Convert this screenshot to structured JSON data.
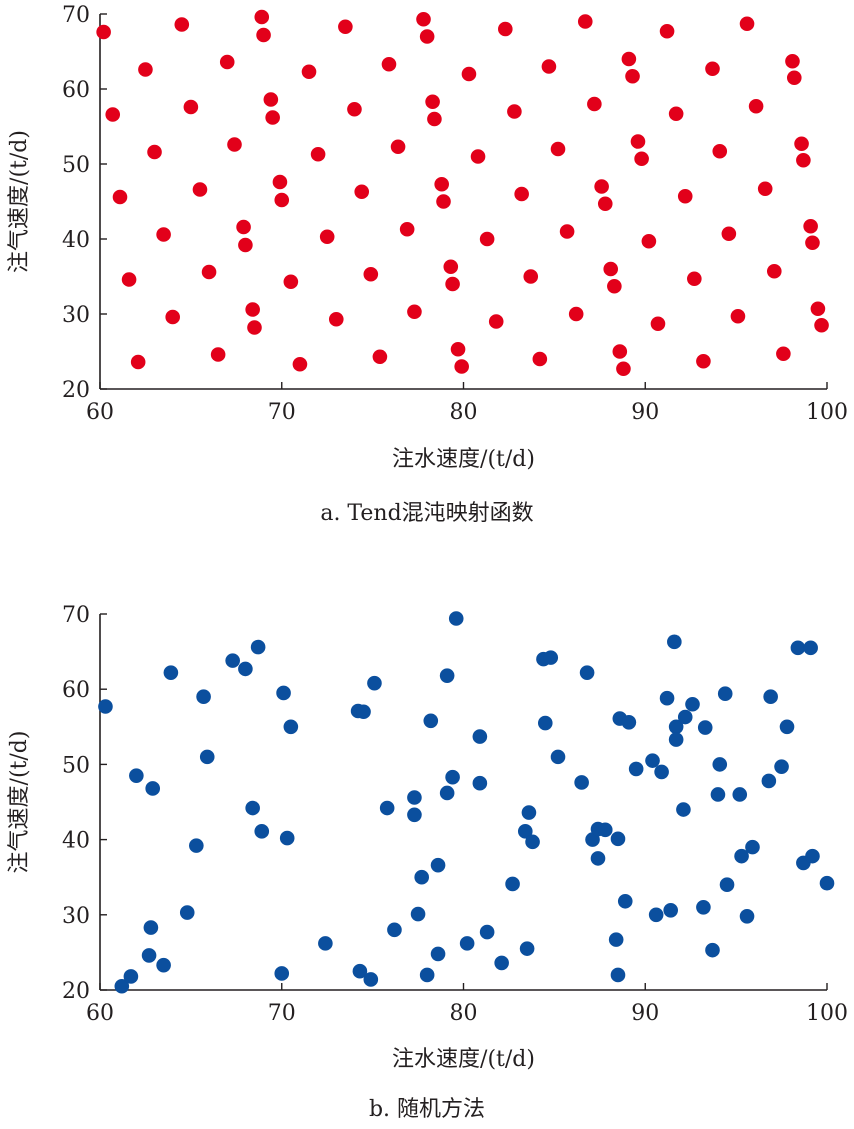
{
  "colors": {
    "series_a": "#e2001a",
    "series_b": "#0b4f9e",
    "axis": "#231f20"
  },
  "chart_data": [
    {
      "type": "scatter",
      "caption": "a. Tend混沌映射函数",
      "xlabel": "注水速度/(t/d)",
      "ylabel": "注气速度/(t/d)",
      "xlim": [
        60,
        100
      ],
      "ylim": [
        20,
        70
      ],
      "xticks": [
        "60",
        "70",
        "80",
        "90",
        "100"
      ],
      "yticks": [
        "20",
        "30",
        "40",
        "50",
        "60",
        "70"
      ],
      "grid": false,
      "legend": "none",
      "points": [
        [
          60.2,
          67.6
        ],
        [
          60.7,
          56.6
        ],
        [
          61.1,
          45.6
        ],
        [
          61.6,
          34.6
        ],
        [
          62.1,
          23.6
        ],
        [
          62.5,
          62.6
        ],
        [
          63.0,
          51.6
        ],
        [
          63.5,
          40.6
        ],
        [
          64.0,
          29.6
        ],
        [
          64.5,
          68.6
        ],
        [
          65.0,
          57.6
        ],
        [
          65.5,
          46.6
        ],
        [
          66.0,
          35.6
        ],
        [
          66.5,
          24.6
        ],
        [
          67.0,
          63.6
        ],
        [
          67.4,
          52.6
        ],
        [
          67.9,
          41.6
        ],
        [
          68.4,
          30.6
        ],
        [
          68.9,
          69.6
        ],
        [
          69.4,
          58.6
        ],
        [
          69.9,
          47.6
        ],
        [
          70.5,
          34.3
        ],
        [
          71.0,
          23.3
        ],
        [
          71.5,
          62.3
        ],
        [
          72.0,
          51.3
        ],
        [
          72.5,
          40.3
        ],
        [
          73.0,
          29.3
        ],
        [
          73.5,
          68.3
        ],
        [
          74.0,
          57.3
        ],
        [
          74.4,
          46.3
        ],
        [
          74.9,
          35.3
        ],
        [
          75.4,
          24.3
        ],
        [
          75.9,
          63.3
        ],
        [
          76.4,
          52.3
        ],
        [
          76.9,
          41.3
        ],
        [
          77.3,
          30.3
        ],
        [
          77.8,
          69.3
        ],
        [
          78.3,
          58.3
        ],
        [
          78.8,
          47.3
        ],
        [
          79.3,
          36.3
        ],
        [
          79.7,
          25.3
        ],
        [
          80.3,
          62.0
        ],
        [
          80.8,
          51.0
        ],
        [
          81.3,
          40.0
        ],
        [
          81.8,
          29.0
        ],
        [
          82.3,
          68.0
        ],
        [
          82.8,
          57.0
        ],
        [
          83.2,
          46.0
        ],
        [
          83.7,
          35.0
        ],
        [
          84.2,
          24.0
        ],
        [
          84.7,
          63.0
        ],
        [
          85.2,
          52.0
        ],
        [
          85.7,
          41.0
        ],
        [
          86.2,
          30.0
        ],
        [
          86.7,
          69.0
        ],
        [
          87.2,
          58.0
        ],
        [
          87.6,
          47.0
        ],
        [
          88.1,
          36.0
        ],
        [
          88.6,
          25.0
        ],
        [
          89.1,
          64.0
        ],
        [
          89.6,
          53.0
        ],
        [
          90.2,
          39.7
        ],
        [
          90.7,
          28.7
        ],
        [
          91.2,
          67.7
        ],
        [
          91.7,
          56.7
        ],
        [
          92.2,
          45.7
        ],
        [
          92.7,
          34.7
        ],
        [
          93.2,
          23.7
        ],
        [
          93.7,
          62.7
        ],
        [
          94.1,
          51.7
        ],
        [
          94.6,
          40.7
        ],
        [
          95.1,
          29.7
        ],
        [
          95.6,
          68.7
        ],
        [
          96.1,
          57.7
        ],
        [
          96.6,
          46.7
        ],
        [
          97.1,
          35.7
        ],
        [
          97.6,
          24.7
        ],
        [
          98.1,
          63.7
        ],
        [
          98.6,
          52.7
        ],
        [
          99.1,
          41.7
        ],
        [
          99.5,
          30.7
        ],
        [
          98.2,
          61.5
        ],
        [
          98.7,
          50.5
        ],
        [
          99.2,
          39.5
        ],
        [
          99.7,
          28.5
        ],
        [
          68.0,
          39.2
        ],
        [
          68.5,
          28.2
        ],
        [
          69.0,
          67.2
        ],
        [
          69.5,
          56.2
        ],
        [
          70.0,
          45.2
        ],
        [
          78.0,
          67.0
        ],
        [
          78.4,
          56.0
        ],
        [
          78.9,
          45.0
        ],
        [
          79.4,
          34.0
        ],
        [
          79.9,
          23.0
        ],
        [
          87.8,
          44.7
        ],
        [
          88.3,
          33.7
        ],
        [
          88.8,
          22.7
        ],
        [
          89.3,
          61.7
        ],
        [
          89.8,
          50.7
        ]
      ]
    },
    {
      "type": "scatter",
      "caption": "b. 随机方法",
      "xlabel": "注水速度/(t/d)",
      "ylabel": "注气速度/(t/d)",
      "xlim": [
        60,
        100
      ],
      "ylim": [
        20,
        70
      ],
      "xticks": [
        "60",
        "70",
        "80",
        "90",
        "100"
      ],
      "yticks": [
        "20",
        "30",
        "40",
        "50",
        "60",
        "70"
      ],
      "grid": false,
      "legend": "none",
      "points": [
        [
          60.3,
          57.7
        ],
        [
          61.2,
          20.5
        ],
        [
          61.7,
          21.8
        ],
        [
          62.0,
          48.5
        ],
        [
          62.7,
          24.6
        ],
        [
          62.8,
          28.3
        ],
        [
          62.9,
          46.8
        ],
        [
          63.5,
          23.3
        ],
        [
          63.9,
          62.2
        ],
        [
          64.8,
          30.3
        ],
        [
          65.3,
          39.2
        ],
        [
          65.7,
          59.0
        ],
        [
          65.9,
          51.0
        ],
        [
          67.3,
          63.8
        ],
        [
          68.0,
          62.7
        ],
        [
          68.4,
          44.2
        ],
        [
          68.7,
          65.6
        ],
        [
          68.9,
          41.1
        ],
        [
          70.0,
          22.2
        ],
        [
          70.1,
          59.5
        ],
        [
          70.3,
          40.2
        ],
        [
          70.5,
          55.0
        ],
        [
          72.4,
          26.2
        ],
        [
          74.2,
          57.1
        ],
        [
          74.3,
          22.5
        ],
        [
          74.5,
          57.0
        ],
        [
          74.9,
          21.4
        ],
        [
          75.1,
          60.8
        ],
        [
          75.8,
          44.2
        ],
        [
          76.2,
          28.0
        ],
        [
          77.3,
          43.3
        ],
        [
          77.3,
          45.6
        ],
        [
          77.5,
          30.1
        ],
        [
          77.7,
          35.0
        ],
        [
          78.0,
          22.0
        ],
        [
          78.2,
          55.8
        ],
        [
          78.6,
          24.8
        ],
        [
          78.6,
          36.6
        ],
        [
          79.1,
          61.8
        ],
        [
          79.1,
          46.2
        ],
        [
          79.4,
          48.3
        ],
        [
          79.6,
          69.4
        ],
        [
          80.2,
          26.2
        ],
        [
          80.9,
          47.5
        ],
        [
          80.9,
          53.7
        ],
        [
          81.3,
          27.7
        ],
        [
          82.1,
          23.6
        ],
        [
          82.7,
          34.1
        ],
        [
          83.4,
          41.1
        ],
        [
          83.5,
          25.5
        ],
        [
          83.6,
          43.6
        ],
        [
          83.8,
          39.7
        ],
        [
          84.4,
          64.0
        ],
        [
          84.5,
          55.5
        ],
        [
          84.8,
          64.2
        ],
        [
          85.2,
          51.0
        ],
        [
          86.5,
          47.6
        ],
        [
          86.8,
          62.2
        ],
        [
          87.1,
          40.0
        ],
        [
          87.4,
          41.4
        ],
        [
          87.4,
          37.5
        ],
        [
          87.8,
          41.3
        ],
        [
          88.4,
          26.7
        ],
        [
          88.5,
          40.1
        ],
        [
          88.5,
          22.0
        ],
        [
          88.6,
          56.1
        ],
        [
          88.9,
          31.8
        ],
        [
          89.1,
          55.6
        ],
        [
          89.5,
          49.4
        ],
        [
          90.4,
          50.5
        ],
        [
          90.6,
          30.0
        ],
        [
          90.9,
          49.0
        ],
        [
          91.2,
          58.8
        ],
        [
          91.4,
          30.6
        ],
        [
          91.6,
          66.3
        ],
        [
          91.7,
          55.0
        ],
        [
          91.7,
          53.3
        ],
        [
          92.1,
          44.0
        ],
        [
          92.2,
          56.3
        ],
        [
          92.6,
          58.0
        ],
        [
          93.2,
          31.0
        ],
        [
          93.3,
          54.9
        ],
        [
          93.7,
          25.3
        ],
        [
          94.0,
          46.0
        ],
        [
          94.1,
          50.0
        ],
        [
          94.4,
          59.4
        ],
        [
          94.5,
          34.0
        ],
        [
          95.2,
          46.0
        ],
        [
          95.3,
          37.8
        ],
        [
          95.6,
          29.8
        ],
        [
          95.9,
          39.0
        ],
        [
          96.8,
          47.8
        ],
        [
          96.9,
          59.0
        ],
        [
          97.5,
          49.7
        ],
        [
          97.8,
          55.0
        ],
        [
          98.4,
          65.5
        ],
        [
          98.7,
          36.9
        ],
        [
          99.1,
          65.5
        ],
        [
          99.2,
          37.8
        ],
        [
          100.0,
          34.2
        ]
      ]
    }
  ]
}
